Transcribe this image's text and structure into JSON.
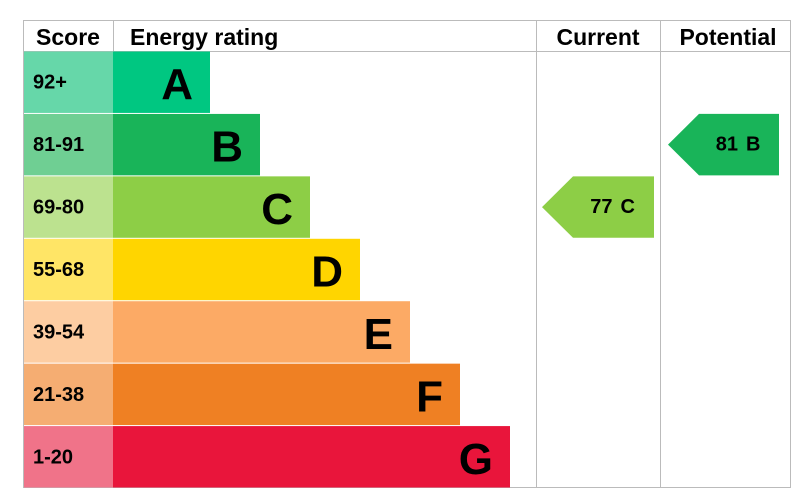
{
  "header": {
    "score": "Score",
    "rating": "Energy rating",
    "current": "Current",
    "potential": "Potential"
  },
  "bands": [
    {
      "score": "92+",
      "letter": "A",
      "color": "#00c781",
      "score_color": "#66d7a9"
    },
    {
      "score": "81-91",
      "letter": "B",
      "color": "#19b459",
      "score_color": "#6fcf93"
    },
    {
      "score": "69-80",
      "letter": "C",
      "color": "#8dce46",
      "score_color": "#bce28f"
    },
    {
      "score": "55-68",
      "letter": "D",
      "color": "#ffd500",
      "score_color": "#ffe566"
    },
    {
      "score": "39-54",
      "letter": "E",
      "color": "#fcaa65",
      "score_color": "#fdcda2"
    },
    {
      "score": "21-38",
      "letter": "F",
      "color": "#ef8023",
      "score_color": "#f5ad72"
    },
    {
      "score": "1-20",
      "letter": "G",
      "color": "#e9153b",
      "score_color": "#f07389"
    }
  ],
  "current": {
    "value": 77,
    "letter": "C"
  },
  "potential": {
    "value": 81,
    "letter": "B"
  }
}
